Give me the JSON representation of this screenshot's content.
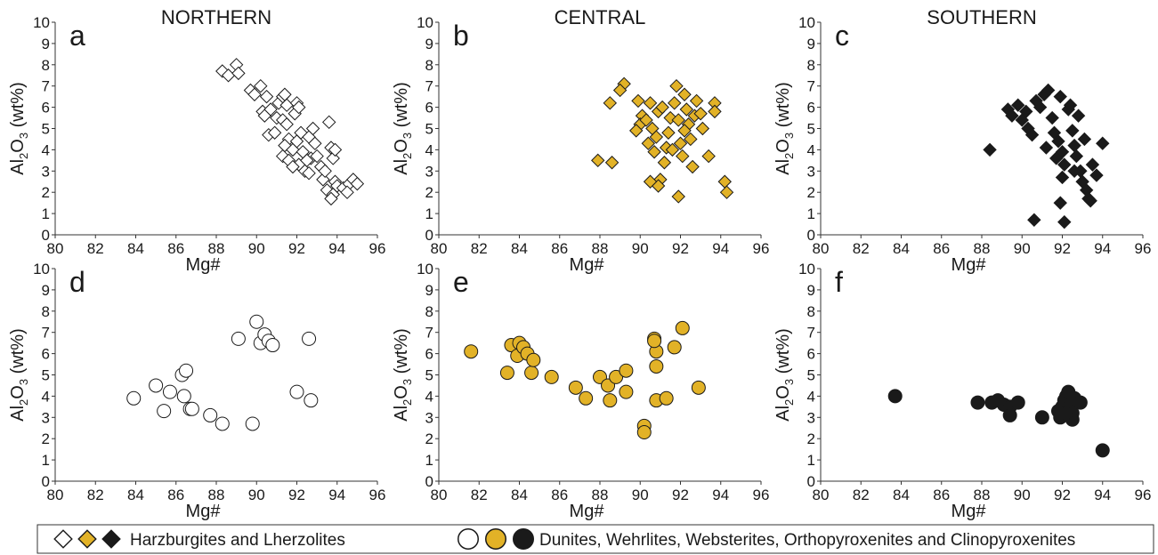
{
  "chart_data": [
    {
      "type": "scatter",
      "label": "a",
      "title": "NORTHERN",
      "xlabel": "Mg#",
      "ylabel": [
        "Al",
        "2",
        "O",
        "3",
        " (wt%)"
      ],
      "xlim": [
        80,
        96
      ],
      "ylim": [
        0,
        10
      ],
      "xticks": [
        80,
        82,
        84,
        86,
        88,
        90,
        92,
        94,
        96
      ],
      "yticks": [
        0,
        1,
        2,
        3,
        4,
        5,
        6,
        7,
        8,
        9,
        10
      ],
      "series": [
        {
          "marker": "diamond",
          "color": "#ffffff",
          "x": [
            88.3,
            88.6,
            89.0,
            89.1,
            89.7,
            90.2,
            89.9,
            90.5,
            90.3,
            90.4,
            90.7,
            90.6,
            90.9,
            91.0,
            91.1,
            91.3,
            91.4,
            91.5,
            91.3,
            91.5,
            91.6,
            91.4,
            91.3,
            91.6,
            91.8,
            91.9,
            92.0,
            92.1,
            92.2,
            92.0,
            92.3,
            92.1,
            92.4,
            92.6,
            92.8,
            92.9,
            92.7,
            92.6,
            93.0,
            93.2,
            93.3,
            93.5,
            93.6,
            93.7,
            93.8,
            93.9,
            93.8,
            93.7,
            94.0,
            94.3,
            94.6,
            94.8,
            95.0,
            94.5,
            93.4,
            92.5,
            91.8,
            93.9
          ],
          "values": [
            7.7,
            7.5,
            8.0,
            7.6,
            6.8,
            7.0,
            6.6,
            6.5,
            5.8,
            5.6,
            5.9,
            4.7,
            4.8,
            5.5,
            6.2,
            6.5,
            6.6,
            6.1,
            5.4,
            5.2,
            4.5,
            4.2,
            3.7,
            3.5,
            4.0,
            5.7,
            6.2,
            6.0,
            4.8,
            4.4,
            3.9,
            3.3,
            3.0,
            4.6,
            5.0,
            4.3,
            3.6,
            2.9,
            3.7,
            3.2,
            2.6,
            2.1,
            5.3,
            4.1,
            3.6,
            2.5,
            1.9,
            1.7,
            2.3,
            2.2,
            2.4,
            2.6,
            2.4,
            2.0,
            3.0,
            3.5,
            3.2,
            4.0
          ]
        }
      ]
    },
    {
      "type": "scatter",
      "label": "b",
      "title": "CENTRAL",
      "xlabel": "Mg#",
      "ylabel": [
        "Al",
        "2",
        "O",
        "3",
        " (wt%)"
      ],
      "xlim": [
        80,
        96
      ],
      "ylim": [
        0,
        10
      ],
      "xticks": [
        80,
        82,
        84,
        86,
        88,
        90,
        92,
        94,
        96
      ],
      "yticks": [
        0,
        1,
        2,
        3,
        4,
        5,
        6,
        7,
        8,
        9,
        10
      ],
      "series": [
        {
          "marker": "diamond",
          "color": "#e2b227",
          "x": [
            89.2,
            89.0,
            88.5,
            89.9,
            90.1,
            90.0,
            89.8,
            90.3,
            90.5,
            90.6,
            90.4,
            90.7,
            90.8,
            90.9,
            91.1,
            91.2,
            91.0,
            90.9,
            90.5,
            91.3,
            91.4,
            91.5,
            91.7,
            91.8,
            91.9,
            92.0,
            92.1,
            92.2,
            92.3,
            92.4,
            92.5,
            92.6,
            92.7,
            92.8,
            93.0,
            93.1,
            93.4,
            93.7,
            93.7,
            94.2,
            94.3,
            91.9,
            87.9,
            88.6,
            91.6,
            92.2
          ],
          "values": [
            7.1,
            6.8,
            6.2,
            6.3,
            5.6,
            5.2,
            4.9,
            5.4,
            6.2,
            5.0,
            4.3,
            3.9,
            4.6,
            5.8,
            6.0,
            3.4,
            2.6,
            2.3,
            2.5,
            4.1,
            4.8,
            5.5,
            6.2,
            7.0,
            5.4,
            4.3,
            3.7,
            6.6,
            5.9,
            5.2,
            4.5,
            3.2,
            5.6,
            6.3,
            5.7,
            5.0,
            3.7,
            6.2,
            5.8,
            2.5,
            2.0,
            1.8,
            3.5,
            3.4,
            4.0,
            4.9
          ]
        }
      ]
    },
    {
      "type": "scatter",
      "label": "c",
      "title": "SOUTHERN",
      "xlabel": "Mg#",
      "ylabel": [
        "Al",
        "2",
        "O",
        "3",
        " (wt%)"
      ],
      "xlim": [
        80,
        96
      ],
      "ylim": [
        0,
        10
      ],
      "xticks": [
        80,
        82,
        84,
        86,
        88,
        90,
        92,
        94,
        96
      ],
      "yticks": [
        0,
        1,
        2,
        3,
        4,
        5,
        6,
        7,
        8,
        9,
        10
      ],
      "series": [
        {
          "marker": "diamond",
          "color": "#1a1a1a",
          "x": [
            88.4,
            89.3,
            89.5,
            89.8,
            90.0,
            90.2,
            90.3,
            90.5,
            90.7,
            90.9,
            91.1,
            91.3,
            91.5,
            91.6,
            91.8,
            91.9,
            92.0,
            92.1,
            92.3,
            92.4,
            92.5,
            92.6,
            92.7,
            92.8,
            92.9,
            93.0,
            93.1,
            93.2,
            93.3,
            93.5,
            93.7,
            94.0,
            90.6,
            91.9,
            92.1,
            91.2,
            92.0,
            93.4,
            92.6,
            91.7
          ],
          "values": [
            4.0,
            5.9,
            5.6,
            6.1,
            5.4,
            5.8,
            5.0,
            4.7,
            6.3,
            6.0,
            6.6,
            6.8,
            5.5,
            4.8,
            4.4,
            6.5,
            3.9,
            3.3,
            5.9,
            6.1,
            4.9,
            4.2,
            3.7,
            5.6,
            3.0,
            2.5,
            4.5,
            2.1,
            1.7,
            3.3,
            2.8,
            4.3,
            0.7,
            1.5,
            0.6,
            4.1,
            2.7,
            1.6,
            3.0,
            3.6
          ]
        }
      ]
    },
    {
      "type": "scatter",
      "label": "d",
      "xlabel": "Mg#",
      "ylabel": [
        "Al",
        "2",
        "O",
        "3",
        " (wt%)"
      ],
      "xlim": [
        80,
        96
      ],
      "ylim": [
        0,
        10
      ],
      "xticks": [
        80,
        82,
        84,
        86,
        88,
        90,
        92,
        94,
        96
      ],
      "yticks": [
        0,
        1,
        2,
        3,
        4,
        5,
        6,
        7,
        8,
        9,
        10
      ],
      "series": [
        {
          "marker": "circle",
          "color": "#ffffff",
          "x": [
            83.9,
            85.0,
            85.4,
            85.7,
            86.3,
            86.5,
            86.4,
            86.7,
            86.8,
            87.7,
            88.3,
            89.1,
            89.8,
            90.0,
            90.2,
            90.4,
            90.6,
            90.8,
            92.0,
            92.6,
            92.7
          ],
          "values": [
            3.9,
            4.5,
            3.3,
            4.2,
            5.0,
            5.2,
            4.0,
            3.4,
            3.4,
            3.1,
            2.7,
            6.7,
            2.7,
            7.5,
            6.5,
            6.9,
            6.6,
            6.4,
            4.2,
            6.7,
            3.8
          ]
        }
      ]
    },
    {
      "type": "scatter",
      "label": "e",
      "xlabel": "Mg#",
      "ylabel": [
        "Al",
        "2",
        "O",
        "3",
        " (wt%)"
      ],
      "xlim": [
        80,
        96
      ],
      "ylim": [
        0,
        10
      ],
      "xticks": [
        80,
        82,
        84,
        86,
        88,
        90,
        92,
        94,
        96
      ],
      "yticks": [
        0,
        1,
        2,
        3,
        4,
        5,
        6,
        7,
        8,
        9,
        10
      ],
      "series": [
        {
          "marker": "circle",
          "color": "#e2b227",
          "x": [
            81.6,
            83.4,
            83.6,
            83.9,
            84.0,
            84.2,
            84.4,
            84.6,
            84.7,
            85.6,
            86.8,
            87.3,
            88.0,
            88.4,
            88.5,
            88.8,
            89.3,
            89.3,
            90.2,
            90.2,
            90.7,
            90.8,
            90.8,
            90.8,
            90.7,
            91.3,
            91.7,
            92.1,
            92.9
          ],
          "values": [
            6.1,
            5.1,
            6.4,
            5.9,
            6.5,
            6.3,
            6.0,
            5.1,
            5.7,
            4.9,
            4.4,
            3.9,
            4.9,
            4.5,
            3.8,
            4.9,
            5.2,
            4.2,
            2.6,
            2.3,
            6.7,
            6.1,
            5.4,
            3.8,
            6.6,
            3.9,
            6.3,
            7.2,
            4.4
          ]
        }
      ]
    },
    {
      "type": "scatter",
      "label": "f",
      "xlabel": "Mg#",
      "ylabel": [
        "Al",
        "2",
        "O",
        "3",
        " (wt%)"
      ],
      "xlim": [
        80,
        96
      ],
      "ylim": [
        0,
        10
      ],
      "xticks": [
        80,
        82,
        84,
        86,
        88,
        90,
        92,
        94,
        96
      ],
      "yticks": [
        0,
        1,
        2,
        3,
        4,
        5,
        6,
        7,
        8,
        9,
        10
      ],
      "series": [
        {
          "marker": "circle",
          "color": "#1a1a1a",
          "x": [
            83.7,
            87.8,
            88.5,
            88.8,
            89.1,
            89.4,
            89.4,
            89.8,
            91.0,
            91.8,
            91.9,
            92.0,
            92.1,
            92.2,
            92.3,
            92.4,
            92.5,
            92.5,
            92.6,
            92.9,
            92.2,
            94.0
          ],
          "values": [
            4.0,
            3.7,
            3.7,
            3.8,
            3.6,
            3.5,
            3.1,
            3.7,
            3.0,
            3.3,
            3.0,
            3.5,
            3.8,
            4.0,
            4.2,
            3.6,
            3.2,
            2.9,
            3.9,
            3.7,
            3.2,
            1.45
          ]
        }
      ]
    }
  ],
  "legend": [
    {
      "label": "Harzburgites and Lherzolites",
      "marker": "diamond",
      "colors": [
        "#ffffff",
        "#e2b227",
        "#1a1a1a"
      ]
    },
    {
      "label": "Dunites, Wehrlites, Websterites, Orthopyroxenites and Clinopyroxenites",
      "marker": "circle",
      "colors": [
        "#ffffff",
        "#e2b227",
        "#1a1a1a"
      ]
    }
  ]
}
